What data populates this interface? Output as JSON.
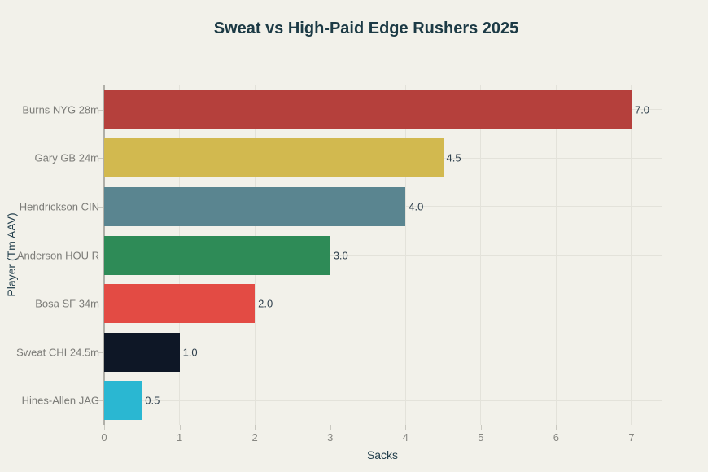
{
  "title": "Sweat vs High-Paid Edge Rushers 2025",
  "chart_data": {
    "type": "bar",
    "orientation": "horizontal",
    "title": "Sweat vs High-Paid Edge Rushers 2025",
    "xlabel": "Sacks",
    "ylabel": "Player (Tm AAV)",
    "categories": [
      "Burns NYG 28m",
      "Gary GB 24m",
      "Hendrickson CIN",
      "Anderson HOU R",
      "Bosa SF 34m",
      "Sweat CHI 24.5m",
      "Hines-Allen JAG"
    ],
    "values": [
      7.0,
      4.5,
      4.0,
      3.0,
      2.0,
      1.0,
      0.5
    ],
    "value_labels": [
      "7.0",
      "4.5",
      "4.0",
      "3.0",
      "2.0",
      "1.0",
      "0.5"
    ],
    "bar_colors": [
      "#b5403c",
      "#d2b94f",
      "#5a8590",
      "#2e8b57",
      "#e34b44",
      "#0e1726",
      "#2ab7d2"
    ],
    "x_ticks": [
      "0",
      "1",
      "2",
      "3",
      "4",
      "5",
      "6",
      "7"
    ],
    "xlim": [
      0,
      7.4
    ],
    "grid": true,
    "legend": "none",
    "colors": {
      "background": "#f2f1ea",
      "gridline": "#e3e2da",
      "axis_line": "#b0afa8",
      "tick_mark": "#c9c8c0",
      "title_text": "#1c3a45",
      "axis_title_text": "#24404d",
      "tick_text": "#878782",
      "category_text": "#7c7c78",
      "value_text": "#2e3f4c"
    }
  }
}
